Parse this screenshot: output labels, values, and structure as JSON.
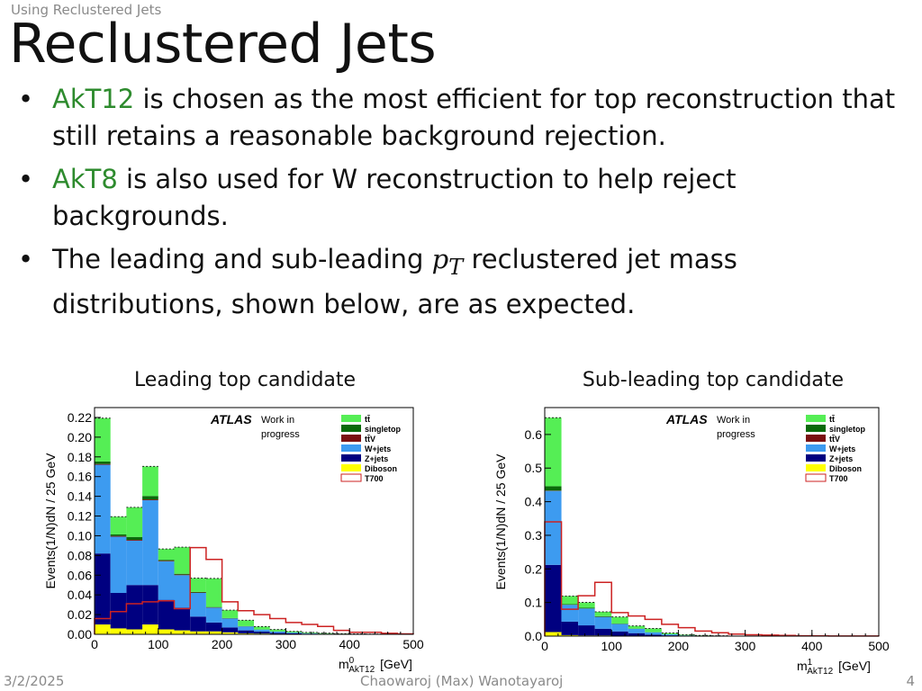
{
  "slide": {
    "section": "Using Reclustered Jets",
    "title": "Reclustered Jets",
    "date": "3/2/2025",
    "author": "Chaowaroj (Max) Wanotayaroj",
    "page": "4"
  },
  "bullets": [
    {
      "highlight": "AkT12",
      "text": " is chosen as the most efficient for top reconstruction that still retains a reasonable background rejection."
    },
    {
      "highlight": "AkT8",
      "text": " is also used for W reconstruction to help reject backgrounds."
    },
    {
      "pre": "The leading and sub-leading ",
      "math": "p",
      "math_sub": "T",
      "post": " reclustered jet mass distributions, shown below, are as expected."
    }
  ],
  "colors": {
    "highlight": "#2e8b2e"
  },
  "legend_labels": {
    "atlas": "ATLAS",
    "status": "Work in progress"
  },
  "chart_data": [
    {
      "type": "bar",
      "panel_title": "Leading top candidate",
      "xlabel": "m",
      "xlabel_sup": "0",
      "xlabel_sub": "AkT12",
      "xlabel_unit": "[GeV]",
      "ylabel": "Events(1/N)dN / 25 GeV",
      "xlim": [
        0,
        500
      ],
      "ylim": [
        0,
        0.23
      ],
      "x_ticks": [
        0,
        100,
        200,
        300,
        400,
        500
      ],
      "y_ticks": [
        "0.00",
        "0.02",
        "0.04",
        "0.06",
        "0.08",
        "0.10",
        "0.12",
        "0.14",
        "0.16",
        "0.18",
        "0.20",
        "0.22"
      ],
      "bin_edges": [
        0,
        25,
        50,
        75,
        100,
        125,
        150,
        175,
        200,
        225,
        250,
        275,
        300,
        325,
        350,
        375,
        400,
        425,
        450,
        475,
        500
      ],
      "stacked": true,
      "series": [
        {
          "name": "Diboson",
          "color": "#ffff00",
          "values": [
            0.01,
            0.006,
            0.005,
            0.01,
            0.005,
            0.004,
            0.003,
            0.003,
            0.002,
            0.001,
            0.0008,
            0.0005,
            0.0003,
            0.0002,
            0.0001,
            0,
            0,
            0,
            0,
            0
          ]
        },
        {
          "name": "Z+jets",
          "color": "#000080",
          "values": [
            0.072,
            0.036,
            0.045,
            0.04,
            0.03,
            0.023,
            0.015,
            0.009,
            0.005,
            0.003,
            0.002,
            0.001,
            0.0007,
            0.0004,
            0.0002,
            0.0001,
            0,
            0,
            0,
            0
          ]
        },
        {
          "name": "W+jets",
          "color": "#3d9bf0",
          "values": [
            0.09,
            0.057,
            0.045,
            0.086,
            0.039,
            0.033,
            0.024,
            0.015,
            0.009,
            0.004,
            0.002,
            0.0014,
            0.0008,
            0.0005,
            0.0003,
            0.0002,
            0.0001,
            0,
            0,
            0
          ]
        },
        {
          "name": "ttV",
          "color": "#7a1010",
          "values": [
            0.0008,
            0.0008,
            0.0008,
            0.0008,
            0.0006,
            0.0006,
            0.0004,
            0.0003,
            0.0002,
            0.0001,
            0,
            0,
            0,
            0,
            0,
            0,
            0,
            0,
            0,
            0
          ]
        },
        {
          "name": "singletop",
          "color": "#0a6a0a",
          "values": [
            0.0025,
            0.0015,
            0.003,
            0.0035,
            0.001,
            0.0008,
            0.0006,
            0.0004,
            0.0003,
            0.0002,
            0.0001,
            0,
            0,
            0,
            0,
            0,
            0,
            0,
            0,
            0
          ]
        },
        {
          "name": "ttbar",
          "color": "#55ee55",
          "values": [
            0.044,
            0.018,
            0.03,
            0.03,
            0.011,
            0.027,
            0.014,
            0.029,
            0.008,
            0.006,
            0.003,
            0.002,
            0.0012,
            0.0008,
            0.0006,
            0.0004,
            0.0003,
            0.0002,
            0.0001,
            0.0001
          ]
        }
      ],
      "overlay": {
        "name": "T700",
        "color": "#cc2222",
        "values": [
          0.016,
          0.023,
          0.031,
          0.033,
          0.034,
          0.026,
          0.088,
          0.076,
          0.033,
          0.024,
          0.02,
          0.016,
          0.012,
          0.01,
          0.008,
          0.004,
          0.002,
          0.002,
          0.001,
          0.0005
        ]
      }
    },
    {
      "type": "bar",
      "panel_title": "Sub-leading top candidate",
      "xlabel": "m",
      "xlabel_sup": "1",
      "xlabel_sub": "AkT12",
      "xlabel_unit": "[GeV]",
      "ylabel": "Events(1/N)dN / 25 GeV",
      "xlim": [
        0,
        500
      ],
      "ylim": [
        0,
        0.68
      ],
      "x_ticks": [
        0,
        100,
        200,
        300,
        400,
        500
      ],
      "y_ticks": [
        "0.0",
        "0.1",
        "0.2",
        "0.3",
        "0.4",
        "0.5",
        "0.6"
      ],
      "bin_edges": [
        0,
        25,
        50,
        75,
        100,
        125,
        150,
        175,
        200,
        225,
        250,
        275,
        300,
        325,
        350,
        375,
        400,
        425,
        450,
        475,
        500
      ],
      "stacked": true,
      "series": [
        {
          "name": "Diboson",
          "color": "#ffff00",
          "values": [
            0.012,
            0.003,
            0.002,
            0.002,
            0.001,
            0.0008,
            0.0005,
            0.0003,
            0.0002,
            0.0001,
            0,
            0,
            0,
            0,
            0,
            0,
            0,
            0,
            0,
            0
          ]
        },
        {
          "name": "Z+jets",
          "color": "#000080",
          "values": [
            0.2,
            0.04,
            0.03,
            0.02,
            0.013,
            0.008,
            0.004,
            0.002,
            0.001,
            0.0005,
            0.0002,
            0,
            0,
            0,
            0,
            0,
            0,
            0,
            0,
            0
          ]
        },
        {
          "name": "W+jets",
          "color": "#3d9bf0",
          "values": [
            0.22,
            0.05,
            0.05,
            0.035,
            0.022,
            0.013,
            0.007,
            0.003,
            0.001,
            0.0005,
            0.0002,
            0,
            0,
            0,
            0,
            0,
            0,
            0,
            0,
            0
          ]
        },
        {
          "name": "ttV",
          "color": "#7a1010",
          "values": [
            0.001,
            0.0003,
            0.0003,
            0.0003,
            0.0002,
            0.0001,
            0,
            0,
            0,
            0,
            0,
            0,
            0,
            0,
            0,
            0,
            0,
            0,
            0,
            0
          ]
        },
        {
          "name": "singletop",
          "color": "#0a6a0a",
          "values": [
            0.013,
            0.002,
            0.002,
            0.002,
            0.001,
            0.0005,
            0.0002,
            0,
            0,
            0,
            0,
            0,
            0,
            0,
            0,
            0,
            0,
            0,
            0,
            0
          ]
        },
        {
          "name": "ttbar",
          "color": "#55ee55",
          "values": [
            0.204,
            0.024,
            0.016,
            0.013,
            0.02,
            0.008,
            0.011,
            0.004,
            0.002,
            0.001,
            0.0005,
            0,
            0,
            0,
            0,
            0,
            0,
            0,
            0,
            0
          ]
        }
      ],
      "overlay": {
        "name": "T700",
        "color": "#cc2222",
        "values": [
          0.34,
          0.08,
          0.12,
          0.16,
          0.07,
          0.06,
          0.05,
          0.035,
          0.025,
          0.015,
          0.01,
          0.006,
          0.004,
          0.003,
          0.002,
          0.001,
          0.0008,
          0.0005,
          0.0003,
          0.0002
        ]
      }
    }
  ],
  "legend_order": [
    "ttbar",
    "singletop",
    "ttV",
    "W+jets",
    "Z+jets",
    "Diboson",
    "T700"
  ],
  "legend_display": {
    "ttbar": "tt̄",
    "singletop": "singletop",
    "ttV": "tt̄V",
    "W+jets": "W+jets",
    "Z+jets": "Z+jets",
    "Diboson": "Diboson",
    "T700": "T700"
  }
}
